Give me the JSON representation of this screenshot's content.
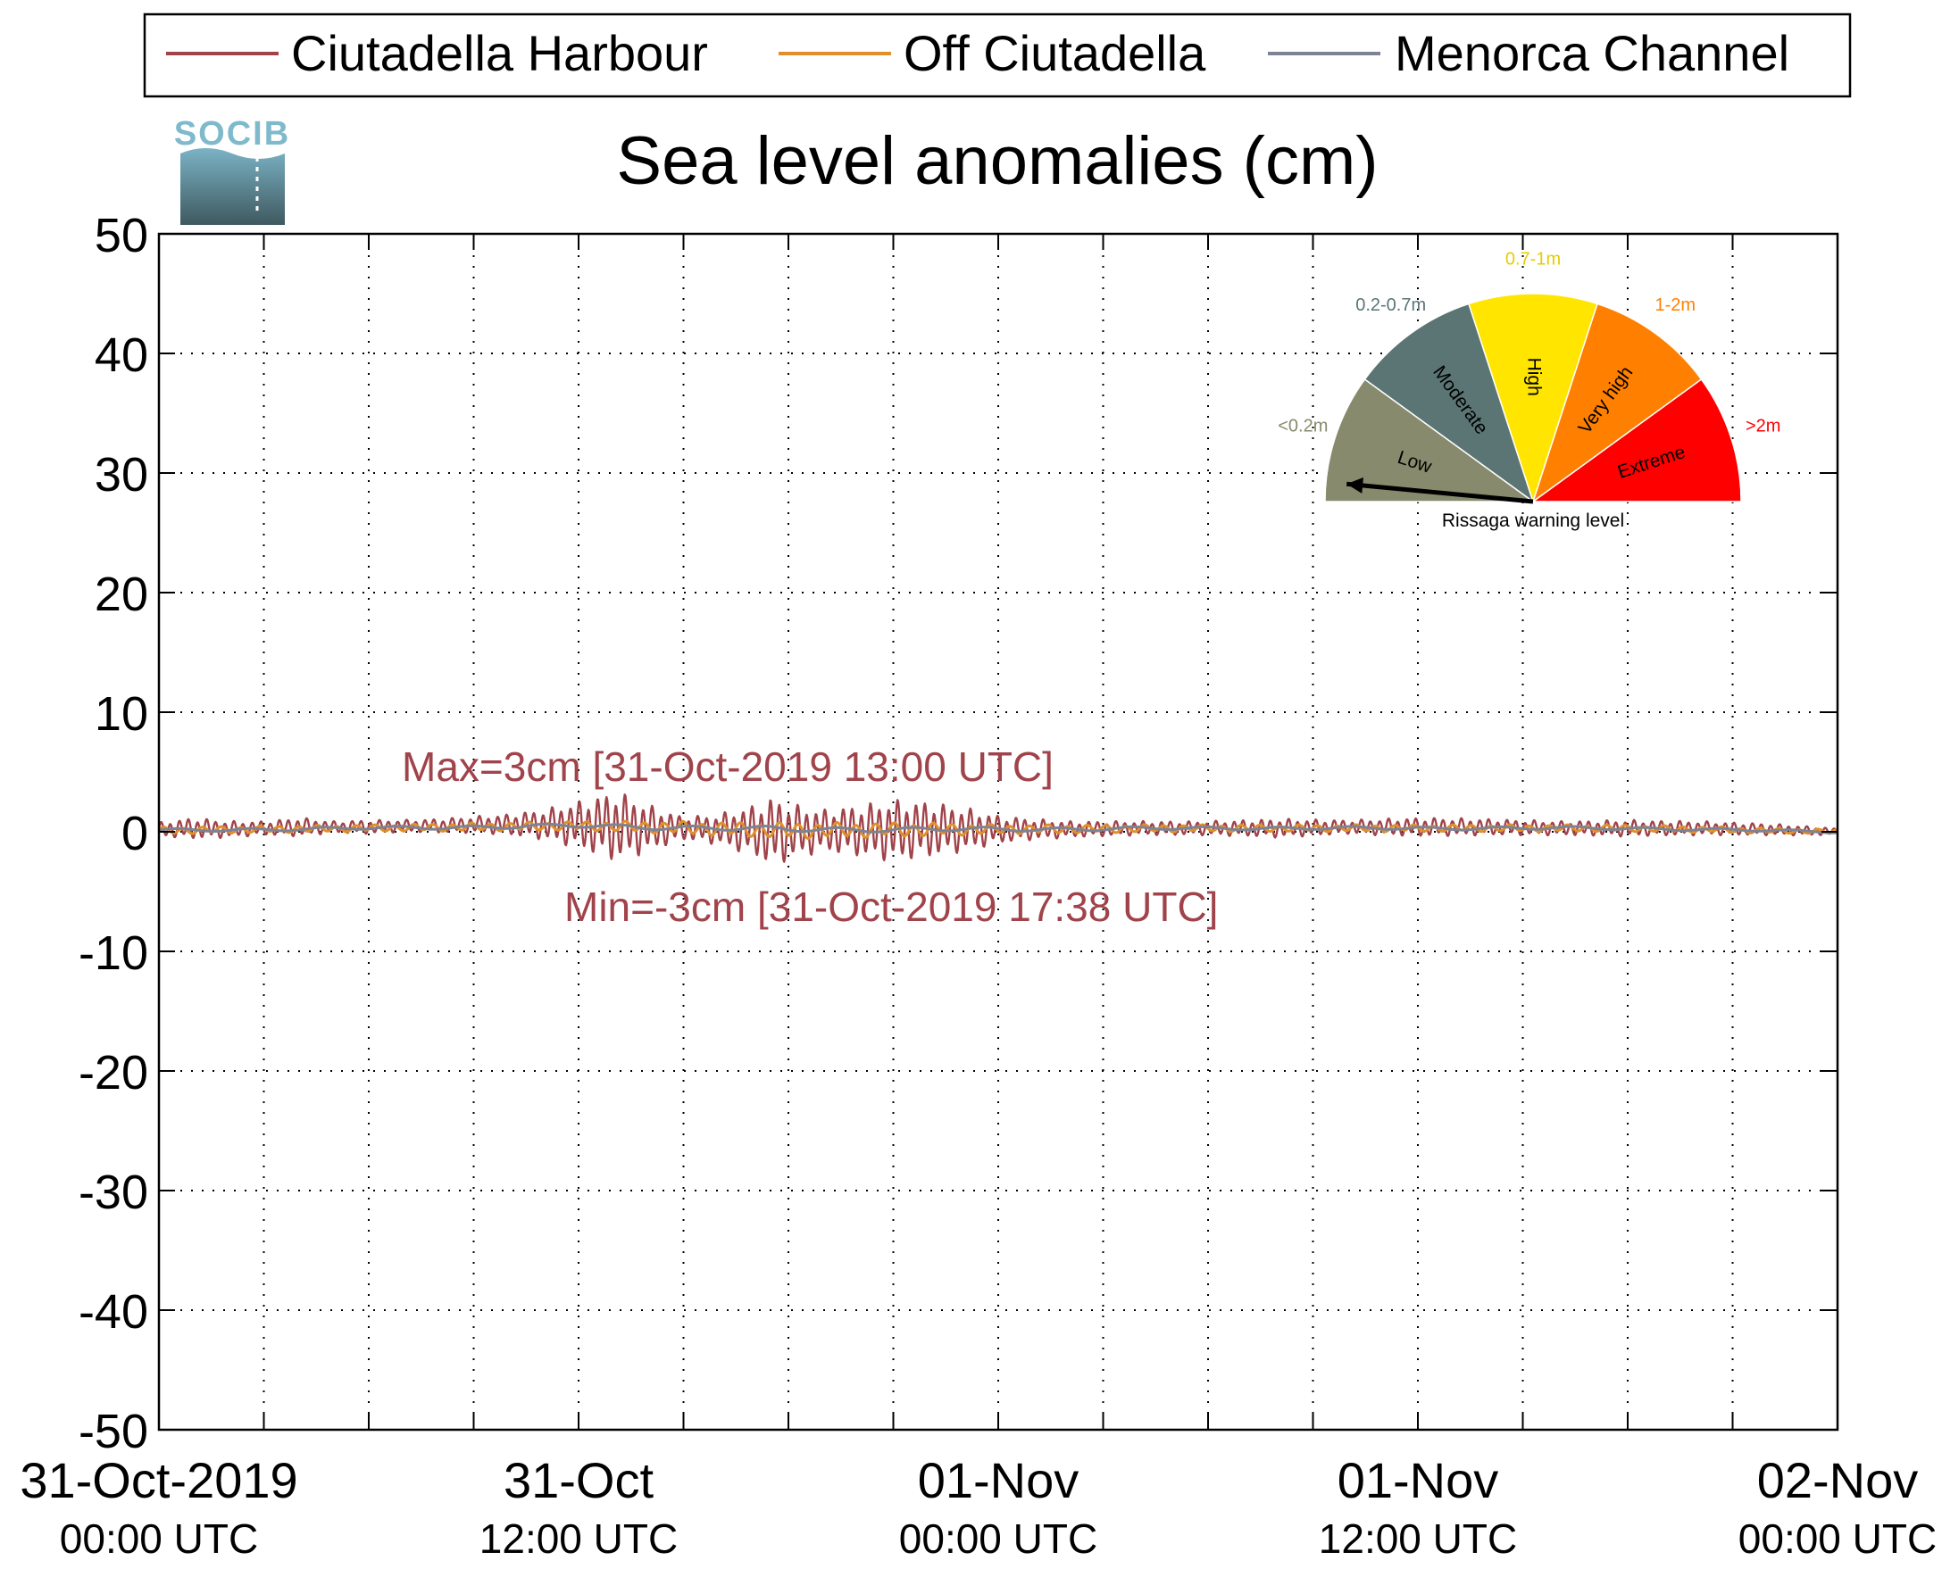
{
  "legend": {
    "items": [
      {
        "label": "Ciutadella Harbour",
        "color": "#a0434a"
      },
      {
        "label": "Off Ciutadella",
        "color": "#e0902a"
      },
      {
        "label": "Menorca Channel",
        "color": "#7d8394"
      }
    ]
  },
  "logo": {
    "text": "SOCIB",
    "color_top": "#7fb9cc",
    "color_bottom": "#3f5960"
  },
  "chart_data": {
    "type": "line",
    "title": "Sea level anomalies (cm)",
    "xlabel": "",
    "ylabel": "",
    "ylim": [
      -50,
      50
    ],
    "yticks": [
      50,
      40,
      30,
      20,
      10,
      0,
      -10,
      -20,
      -30,
      -40,
      -50
    ],
    "x_range_hours": [
      0,
      48
    ],
    "x_tick_hours": [
      0,
      12,
      24,
      36,
      48
    ],
    "x_tick_labels": [
      {
        "top": "31-Oct-2019",
        "bottom": "00:00 UTC"
      },
      {
        "top": "31-Oct",
        "bottom": "12:00 UTC"
      },
      {
        "top": "01-Nov",
        "bottom": "00:00 UTC"
      },
      {
        "top": "01-Nov",
        "bottom": "12:00 UTC"
      },
      {
        "top": "02-Nov",
        "bottom": "00:00 UTC"
      }
    ],
    "grid": true,
    "annotations": {
      "max": "Max=3cm [31-Oct-2019 13:00 UTC]",
      "min": "Min=-3cm [31-Oct-2019 17:38 UTC]",
      "color": "#a0434a"
    },
    "series": [
      {
        "name": "Ciutadella Harbour",
        "color": "#a0434a",
        "x": [
          0,
          1,
          2,
          3,
          4,
          5,
          6,
          7,
          8,
          9,
          10,
          11,
          12,
          12.5,
          13,
          13.5,
          14,
          15,
          16,
          17,
          17.6,
          18,
          19,
          20,
          21,
          22,
          23,
          24,
          25,
          26,
          28,
          30,
          32,
          34,
          36,
          38,
          40,
          42,
          44,
          46,
          47,
          48
        ],
        "amplitude": [
          0.6,
          0.9,
          0.7,
          0.6,
          0.8,
          0.5,
          0.6,
          0.5,
          0.6,
          0.7,
          0.9,
          1.3,
          2.0,
          2.5,
          3.0,
          2.6,
          2.0,
          1.0,
          1.3,
          2.2,
          3.0,
          2.4,
          1.8,
          2.2,
          2.6,
          2.4,
          1.9,
          1.2,
          0.9,
          0.7,
          0.6,
          0.6,
          0.8,
          0.6,
          0.8,
          0.7,
          0.6,
          0.7,
          0.6,
          0.5,
          0.4,
          0.3
        ],
        "offset": [
          0.2,
          0.3,
          0.2,
          0.3,
          0.4,
          0.4,
          0.4,
          0.5,
          0.5,
          0.6,
          0.6,
          0.6,
          0.6,
          0.5,
          0.5,
          0.4,
          0.3,
          0.3,
          0.2,
          0.1,
          0.0,
          0.0,
          0.1,
          0.1,
          0.1,
          0.2,
          0.2,
          0.2,
          0.2,
          0.2,
          0.3,
          0.3,
          0.3,
          0.4,
          0.4,
          0.4,
          0.3,
          0.3,
          0.3,
          0.2,
          0.1,
          0.0
        ]
      },
      {
        "name": "Off Ciutadella",
        "color": "#e0902a",
        "x": [
          0,
          6,
          12,
          14,
          18,
          22,
          24,
          30,
          36,
          42,
          48
        ],
        "amplitude": [
          0.3,
          0.3,
          0.4,
          0.5,
          0.7,
          0.6,
          0.4,
          0.3,
          0.3,
          0.3,
          0.2
        ],
        "offset": [
          0.1,
          0.3,
          0.5,
          0.4,
          0.1,
          0.2,
          0.2,
          0.3,
          0.3,
          0.3,
          0.0
        ]
      },
      {
        "name": "Menorca Channel",
        "color": "#7d8394",
        "x": [
          0,
          6,
          12,
          18,
          24,
          30,
          36,
          42,
          48
        ],
        "amplitude": [
          0.15,
          0.15,
          0.2,
          0.25,
          0.2,
          0.15,
          0.15,
          0.15,
          0.1
        ],
        "offset": [
          0.1,
          0.3,
          0.5,
          0.2,
          0.2,
          0.3,
          0.3,
          0.3,
          0.0
        ]
      }
    ]
  },
  "gauge": {
    "caption": "Rissaga warning level",
    "needle_level": "Low",
    "sectors": [
      {
        "name": "Low",
        "range": "<0.2m",
        "color": "#878a6c",
        "range_color": "#878a6c"
      },
      {
        "name": "Moderate",
        "range": "0.2-0.7m",
        "color": "#5b7575",
        "range_color": "#5b7575"
      },
      {
        "name": "High",
        "range": "0.7-1m",
        "color": "#ffe500",
        "range_color": "#e6cc00"
      },
      {
        "name": "Very high",
        "range": "1-2m",
        "color": "#ff8000",
        "range_color": "#ff8000"
      },
      {
        "name": "Extreme",
        "range": ">2m",
        "color": "#ff0000",
        "range_color": "#ff0000"
      }
    ]
  }
}
